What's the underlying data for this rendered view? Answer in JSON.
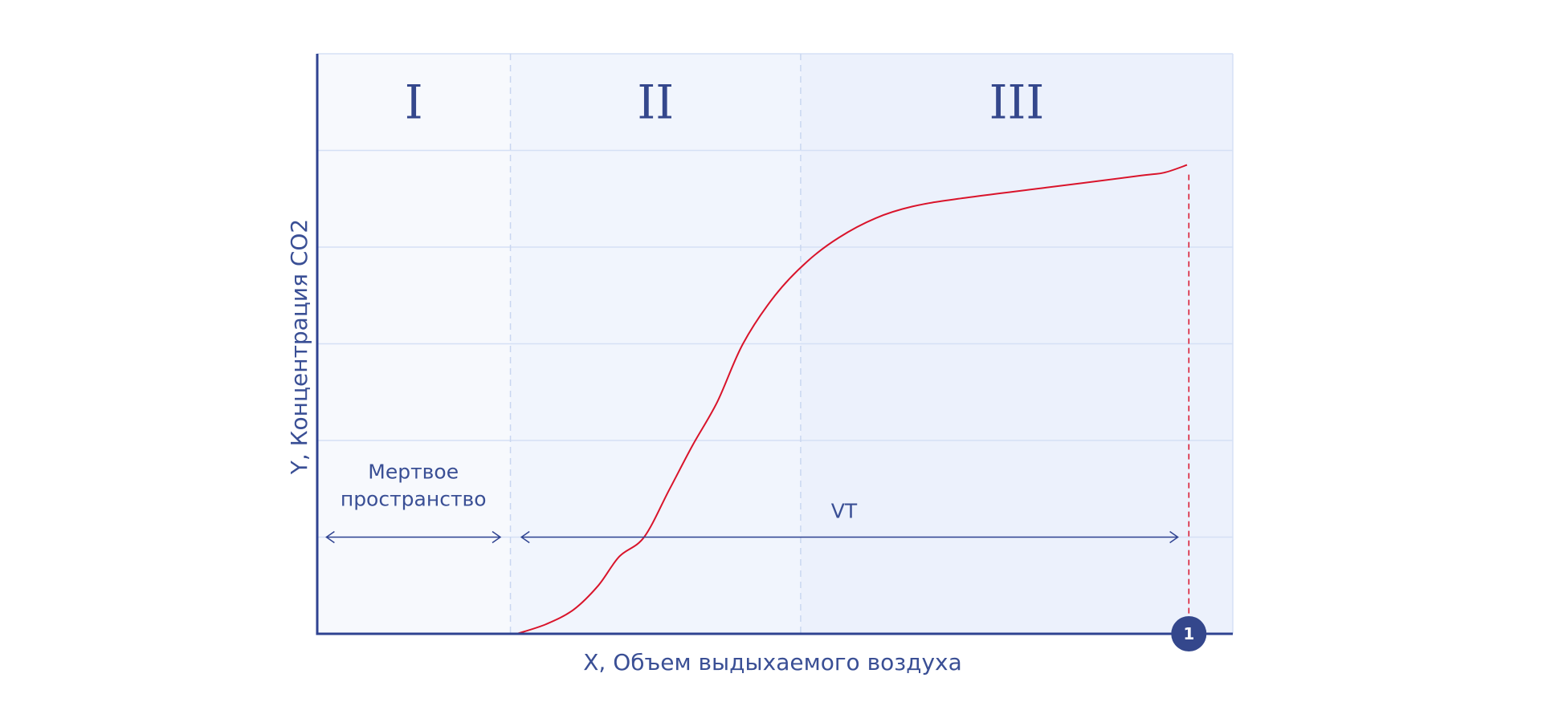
{
  "chart_data": {
    "type": "line",
    "title": "",
    "xlabel": "X, Объем выдыхаемого воздуха",
    "ylabel": "Y, Концентрация CO2",
    "xlim": [
      0,
      100
    ],
    "ylim": [
      0,
      6
    ],
    "grid": true,
    "phases": [
      {
        "label": "I",
        "x_start": 0,
        "x_end": 21.1,
        "color": "#f7f9fd"
      },
      {
        "label": "II",
        "x_start": 21.1,
        "x_end": 52.8,
        "color": "#f1f5fd"
      },
      {
        "label": "III",
        "x_start": 52.8,
        "x_end": 100,
        "color": "#ecf1fc"
      }
    ],
    "series": [
      {
        "color": "#d9142b",
        "points": [
          [
            21.8,
            0.0
          ],
          [
            25,
            0.1
          ],
          [
            28,
            0.25
          ],
          [
            30.7,
            0.5
          ],
          [
            33,
            0.8
          ],
          [
            35.7,
            1.0
          ],
          [
            38.5,
            1.5
          ],
          [
            41,
            1.95
          ],
          [
            43.7,
            2.4
          ],
          [
            46.5,
            3.0
          ],
          [
            50,
            3.5
          ],
          [
            53.5,
            3.85
          ],
          [
            57,
            4.1
          ],
          [
            61,
            4.3
          ],
          [
            65,
            4.42
          ],
          [
            70,
            4.5
          ],
          [
            80,
            4.62
          ],
          [
            90,
            4.74
          ],
          [
            92.5,
            4.77
          ],
          [
            95,
            4.85
          ]
        ]
      }
    ],
    "annotations": {
      "dead_space": {
        "label": "Мертвое пространство",
        "x_start": 1,
        "x_end": 20,
        "y": 1.0
      },
      "vt": {
        "label": "VT",
        "x_start": 22.3,
        "x_end": 94,
        "y": 1.0
      },
      "end_marker": {
        "label": "1",
        "x": 95.2,
        "y_top": 4.75
      }
    },
    "colors": {
      "axis": "#2f4391",
      "grid": "#d5e0f5",
      "phase_divider": "#c9d6f0",
      "curve": "#d9142b",
      "arrow": "#2f4391",
      "marker_fill": "#34478c"
    }
  }
}
